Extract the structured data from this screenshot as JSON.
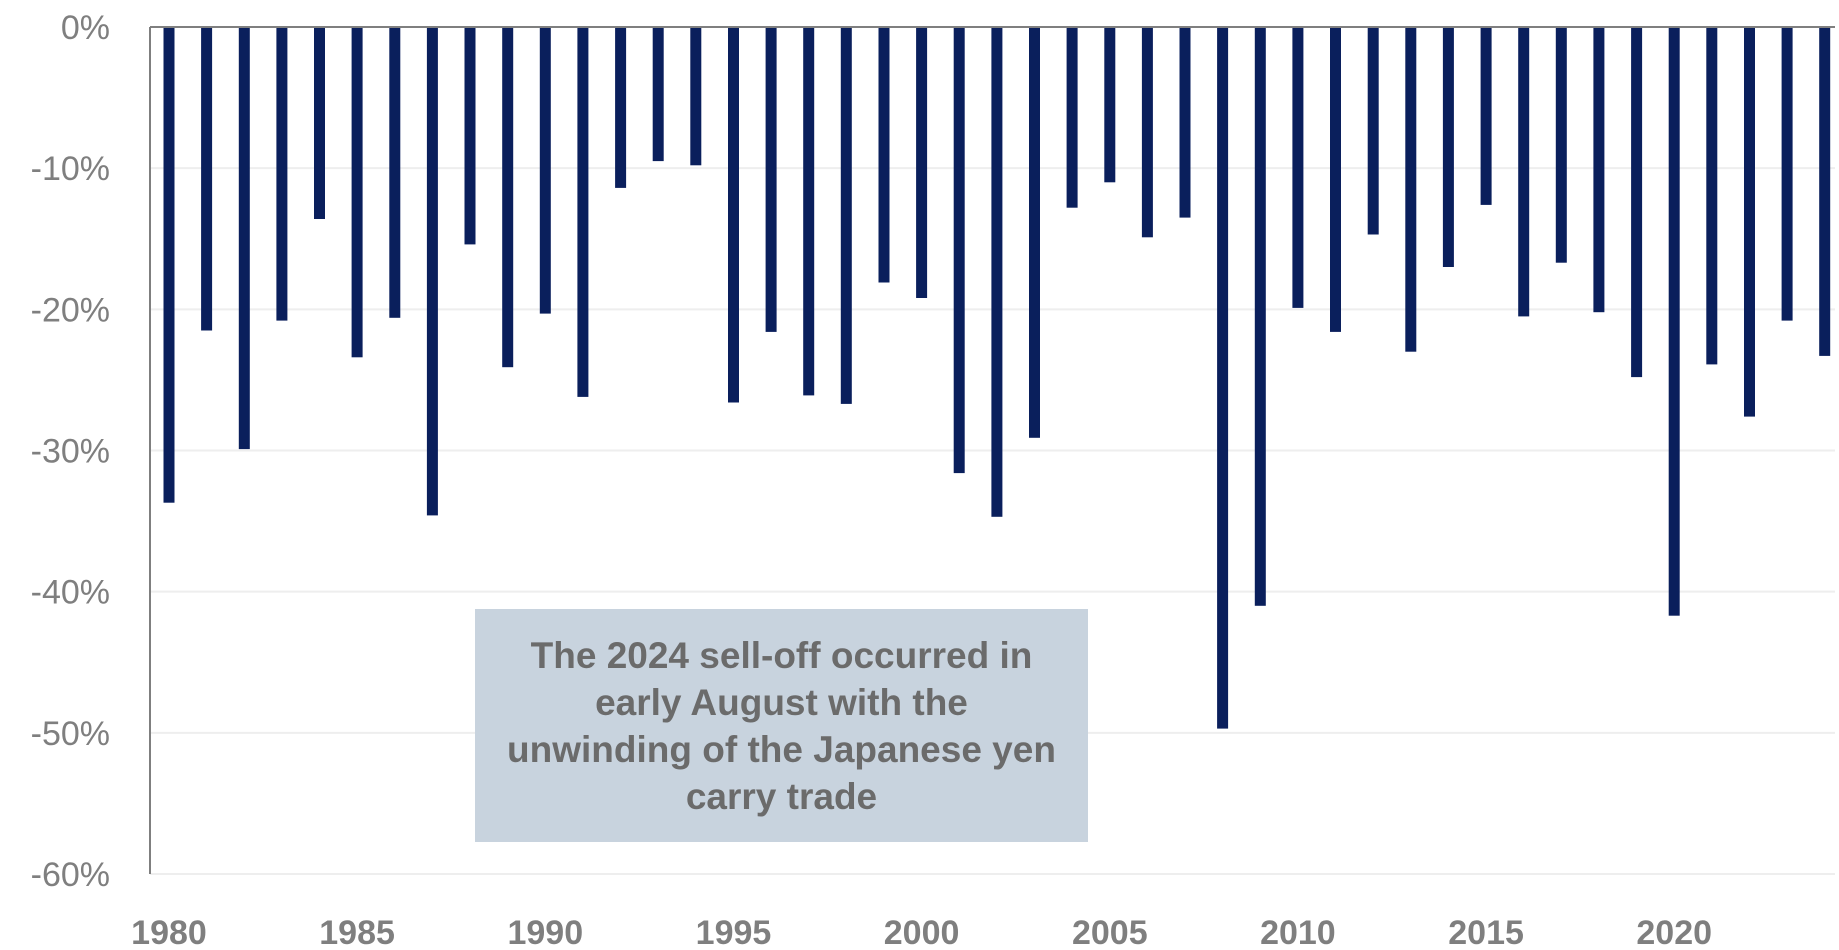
{
  "chart_data": {
    "type": "bar",
    "title": "",
    "xlabel": "",
    "ylabel": "",
    "ylim": [
      -60,
      0
    ],
    "y_ticks": [
      "0%",
      "-10%",
      "-20%",
      "-30%",
      "-40%",
      "-50%",
      "-60%"
    ],
    "x_tick_labels": [
      "1980",
      "1985",
      "1990",
      "1995",
      "2000",
      "2005",
      "2010",
      "2015",
      "2020"
    ],
    "grid": true,
    "bar_color": "#0a1f5c",
    "categories": [
      1980,
      1981,
      1982,
      1983,
      1984,
      1985,
      1986,
      1987,
      1988,
      1989,
      1990,
      1991,
      1992,
      1993,
      1994,
      1995,
      1996,
      1997,
      1998,
      1999,
      2000,
      2001,
      2002,
      2003,
      2004,
      2005,
      2006,
      2007,
      2008,
      2009,
      2010,
      2011,
      2012,
      2013,
      2014,
      2015,
      2016,
      2017,
      2018,
      2019,
      2020,
      2021,
      2022,
      2023,
      2024
    ],
    "values": [
      -33.7,
      -21.5,
      -29.9,
      -20.8,
      -13.6,
      -23.4,
      -20.6,
      -34.6,
      -15.4,
      -24.1,
      -20.3,
      -26.2,
      -11.4,
      -9.5,
      -9.8,
      -26.6,
      -21.6,
      -26.1,
      -26.7,
      -18.1,
      -19.2,
      -31.6,
      -34.7,
      -29.1,
      -12.8,
      -11.0,
      -14.9,
      -13.5,
      -49.7,
      -41.0,
      -19.9,
      -21.6,
      -14.7,
      -23.0,
      -17.0,
      -12.6,
      -20.5,
      -16.7,
      -20.2,
      -24.8,
      -41.7,
      -23.9,
      -27.6,
      -20.8,
      -23.3
    ],
    "annotation": {
      "text": "The 2024 sell-off occurred in early August with the unwinding of the Japanese yen carry trade",
      "background": "#c8d3de"
    }
  }
}
